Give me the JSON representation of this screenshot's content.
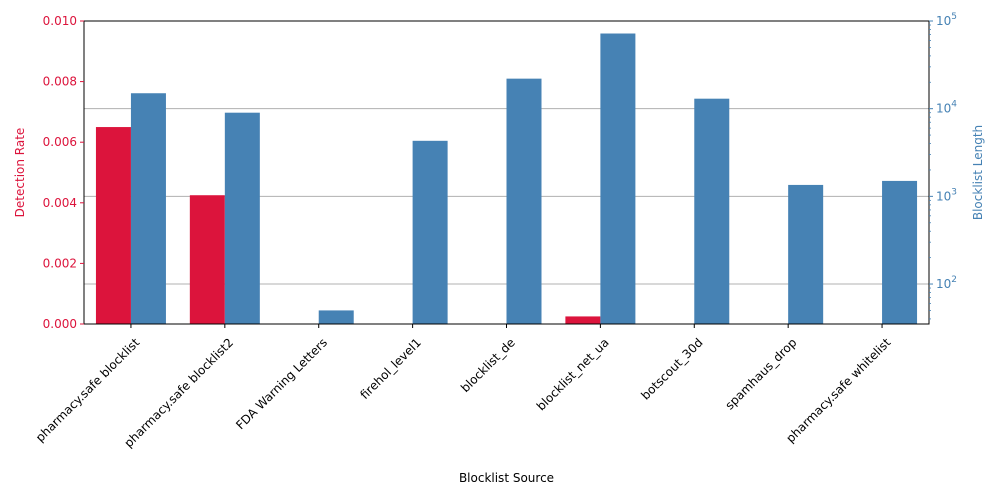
{
  "chart_data": {
    "type": "bar",
    "xlabel": "Blocklist Source",
    "categories": [
      "pharmacy.safe blocklist",
      "pharmacy.safe blocklist2",
      "FDA Warning Letters",
      "firehol_level1",
      "blocklist_de",
      "blocklist_net_ua",
      "botscout_30d",
      "spamhaus_drop",
      "pharmacy.safe whitelist"
    ],
    "series": [
      {
        "name": "Detection Rate",
        "axis": "left",
        "color": "#dc143c",
        "values": [
          0.0065,
          0.00425,
          0,
          0,
          0,
          0.00025,
          0,
          0,
          0
        ]
      },
      {
        "name": "Blocklist Length",
        "axis": "right",
        "color": "#4682b4",
        "values": [
          15000,
          9000,
          50,
          4300,
          22000,
          72000,
          13000,
          1350,
          1500
        ]
      }
    ],
    "y_left": {
      "label": "Detection Rate",
      "color": "#dc143c",
      "ylim": [
        0,
        0.01
      ],
      "ticks": [
        "0.000",
        "0.002",
        "0.004",
        "0.006",
        "0.008",
        "0.010"
      ],
      "tick_values": [
        0,
        0.002,
        0.004,
        0.006,
        0.008,
        0.01
      ]
    },
    "y_right": {
      "label": "Blocklist Length",
      "color": "#4682b4",
      "scale": "log",
      "ylim": [
        35,
        100000
      ],
      "ticks": [
        {
          "base": "10",
          "exp": "2",
          "value": 100
        },
        {
          "base": "10",
          "exp": "3",
          "value": 1000
        },
        {
          "base": "10",
          "exp": "4",
          "value": 10000
        },
        {
          "base": "10",
          "exp": "5",
          "value": 100000
        }
      ]
    },
    "grid": "horizontal, right-axis major ticks",
    "legend": "none"
  }
}
